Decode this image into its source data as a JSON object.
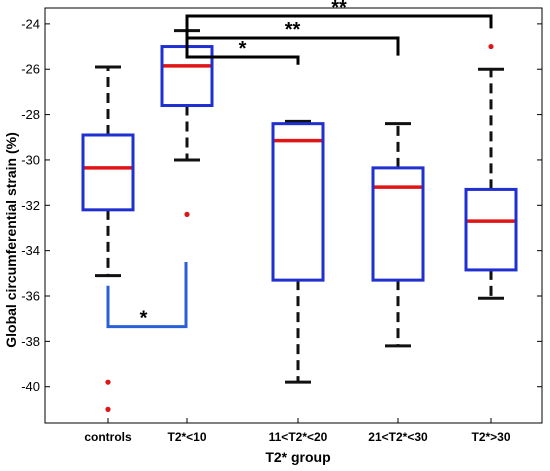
{
  "chart_data": {
    "type": "boxplot",
    "xlabel": "T2* group",
    "ylabel": "Global circumferential strain (%)",
    "ylim": [
      -41.6,
      -23.3
    ],
    "yticks": [
      -40,
      -38,
      -36,
      -34,
      -32,
      -30,
      -28,
      -26,
      -24
    ],
    "grid": false,
    "categories": [
      "controls",
      "T2*<10",
      "11<T2*<20",
      "21<T2*<30",
      "T2*>30"
    ],
    "groups": [
      {
        "category": "controls",
        "min": -35.1,
        "q1": -32.2,
        "median": -30.35,
        "q3": -28.9,
        "max": -25.9,
        "outliers": [
          -39.8,
          -41.0
        ]
      },
      {
        "category": "T2*<10",
        "min": -30.0,
        "q1": -27.6,
        "median": -25.85,
        "q3": -25.0,
        "max": -24.3,
        "outliers": [
          -32.4
        ]
      },
      {
        "category": "11<T2*<20",
        "min": -39.8,
        "q1": -35.3,
        "median": -29.15,
        "q3": -28.4,
        "max": -28.3,
        "outliers": []
      },
      {
        "category": "21<T2*<30",
        "min": -38.2,
        "q1": -35.3,
        "median": -31.2,
        "q3": -30.35,
        "max": -28.4,
        "outliers": []
      },
      {
        "category": "T2*>30",
        "min": -36.1,
        "q1": -34.85,
        "median": -32.7,
        "q3": -31.3,
        "max": -26.0,
        "outliers": [
          -25.0
        ]
      }
    ],
    "significance": [
      {
        "from": "T2*<10",
        "to": "11<T2*<20",
        "label": "*",
        "position": "top"
      },
      {
        "from": "T2*<10",
        "to": "21<T2*<30",
        "label": "**",
        "position": "top"
      },
      {
        "from": "T2*<10",
        "to": "T2*>30",
        "label": "**",
        "position": "top"
      },
      {
        "from": "controls",
        "to": "T2*<10",
        "label": "*",
        "position": "bottom"
      }
    ],
    "colors": {
      "box": "#1f2fd0",
      "median": "#e01515",
      "whisker": "#111111",
      "outlier": "#e01515",
      "bottom_bracket": "#2a5fd6"
    }
  }
}
